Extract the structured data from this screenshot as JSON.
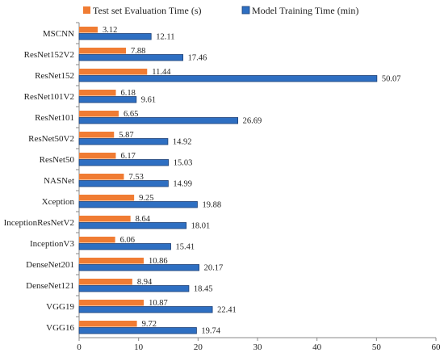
{
  "chart_data": {
    "type": "bar",
    "orientation": "horizontal",
    "title": "",
    "xlabel": "",
    "ylabel": "",
    "xlim": [
      0,
      60
    ],
    "xticks": [
      0,
      10,
      20,
      30,
      40,
      50,
      60
    ],
    "grid": false,
    "legend_position": "top",
    "categories": [
      "MSCNN",
      "ResNet152V2",
      "ResNet152",
      "ResNet101V2",
      "ResNet101",
      "ResNet50V2",
      "ResNet50",
      "NASNet",
      "Xception",
      "InceptionResNetV2",
      "InceptionV3",
      "DenseNet201",
      "DenseNet121",
      "VGG19",
      "VGG16"
    ],
    "series": [
      {
        "name": "Test set Evaluation Time (s)",
        "color": "#F07C33",
        "values": [
          3.12,
          7.88,
          11.44,
          6.18,
          6.65,
          5.87,
          6.17,
          7.53,
          9.25,
          8.64,
          6.06,
          10.86,
          8.94,
          10.87,
          9.72
        ],
        "labels": [
          "3.12",
          "7.88",
          "11.44",
          "6.18",
          "6.65",
          "5.87",
          "6.17",
          "7.53",
          "9.25",
          "8.64",
          "6.06",
          "10.86",
          "8.94",
          "10.87",
          "9.72"
        ]
      },
      {
        "name": "Model Training Time (min)",
        "color": "#2E6FC2",
        "values": [
          12.11,
          17.46,
          50.07,
          9.61,
          26.69,
          14.92,
          15.03,
          14.99,
          19.88,
          18.01,
          15.41,
          20.17,
          18.45,
          22.41,
          19.74
        ],
        "labels": [
          "12.11",
          "17.46",
          "50.07",
          "9.61",
          "26.69",
          "14.92",
          "15.03",
          "14.99",
          "19.88",
          "18.01",
          "15.41",
          "20.17",
          "18.45",
          "22.41",
          "19.74"
        ]
      }
    ]
  }
}
